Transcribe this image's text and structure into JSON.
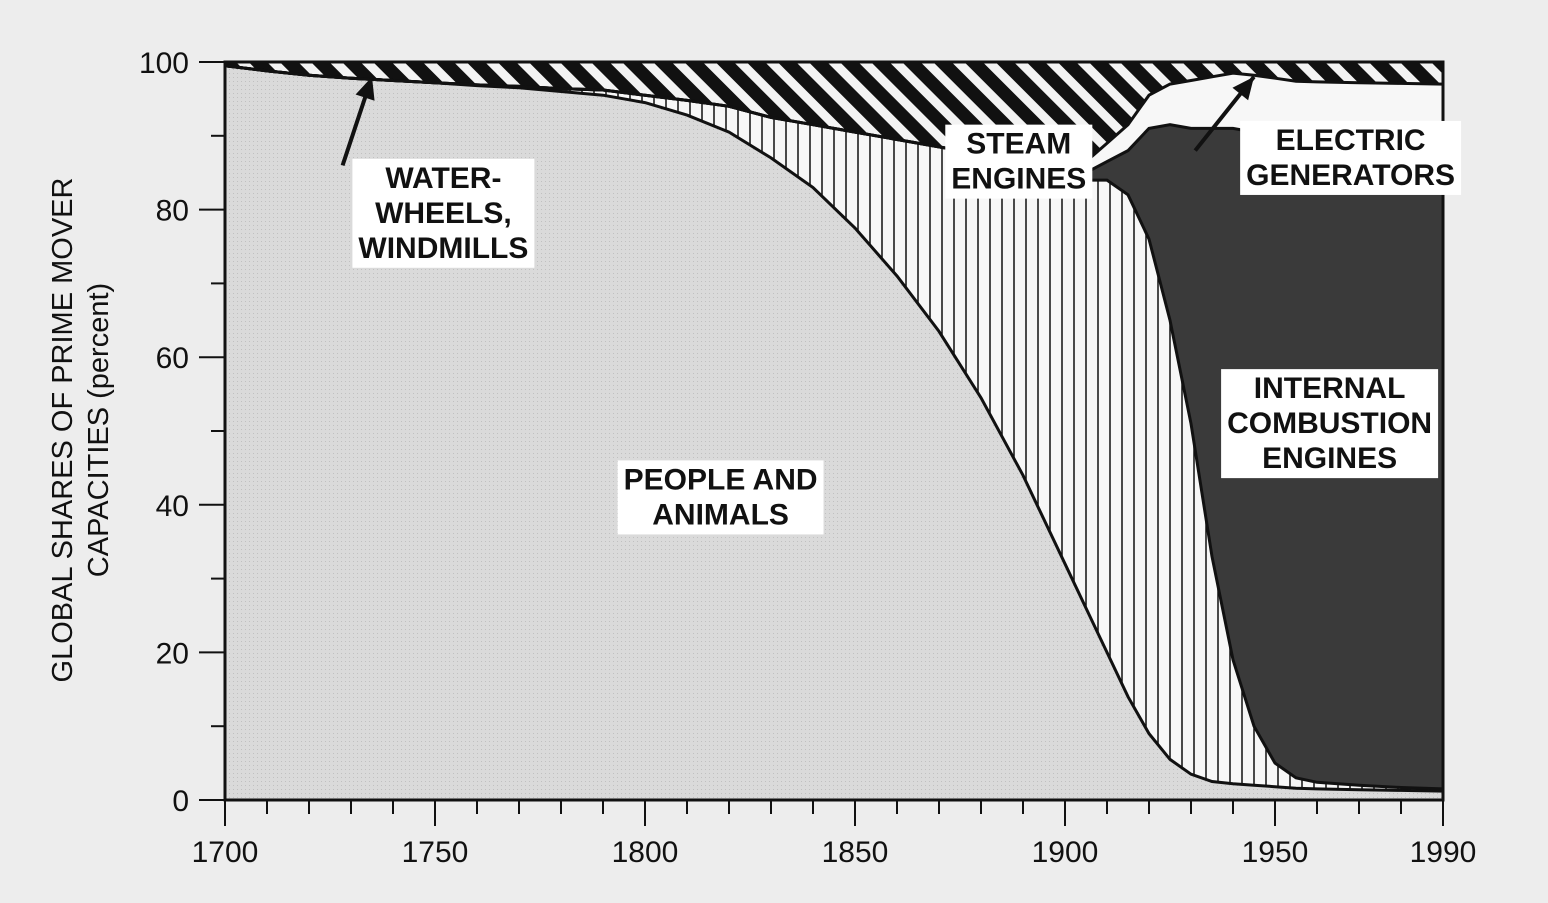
{
  "chart_data": {
    "type": "area",
    "stacked": true,
    "ylabel_line1": "GLOBAL SHARES OF PRIME MOVER",
    "ylabel_line2": "CAPACITIES  (percent)",
    "xlim": [
      1700,
      1990
    ],
    "ylim": [
      0,
      100
    ],
    "x_ticks": [
      1700,
      1750,
      1800,
      1850,
      1900,
      1950,
      1990
    ],
    "y_ticks": [
      0,
      20,
      40,
      60,
      80,
      100
    ],
    "x_minor_step": 10,
    "y_minor_step": 10,
    "x": [
      1700,
      1710,
      1720,
      1730,
      1740,
      1750,
      1760,
      1770,
      1780,
      1790,
      1800,
      1810,
      1820,
      1830,
      1840,
      1850,
      1860,
      1870,
      1880,
      1890,
      1900,
      1905,
      1910,
      1915,
      1920,
      1925,
      1930,
      1935,
      1940,
      1945,
      1950,
      1955,
      1960,
      1970,
      1980,
      1990
    ],
    "series": [
      {
        "name": "PEOPLE AND ANIMALS",
        "fill": "#d7d7d7",
        "values": [
          99.5,
          98.8,
          98.2,
          97.8,
          97.5,
          97.2,
          96.8,
          96.5,
          96.0,
          95.5,
          94.5,
          92.8,
          90.5,
          87.0,
          83.0,
          77.5,
          71.0,
          63.5,
          54.5,
          44.0,
          32.0,
          26.0,
          20.0,
          14.0,
          9.0,
          5.5,
          3.5,
          2.5,
          2.2,
          2.0,
          1.8,
          1.6,
          1.5,
          1.4,
          1.3,
          1.2
        ]
      },
      {
        "name": "STEAM ENGINES",
        "fill": "#f7f7f7",
        "hatch": "vertical",
        "values": [
          0,
          0,
          0,
          0,
          0,
          0,
          0.1,
          0.2,
          0.4,
          0.7,
          1.0,
          2.0,
          3.5,
          5.5,
          8.5,
          13.0,
          18.5,
          25.0,
          33.0,
          42.0,
          52.0,
          58.0,
          64.0,
          68.0,
          67.0,
          59.5,
          47.5,
          30.5,
          16.8,
          8.0,
          3.2,
          1.4,
          0.9,
          0.6,
          0.4,
          0.3
        ]
      },
      {
        "name": "INTERNAL COMBUSTION ENGINES",
        "fill": "#3a3a3a",
        "values": [
          0,
          0,
          0,
          0,
          0,
          0,
          0,
          0,
          0,
          0,
          0,
          0,
          0,
          0,
          0,
          0,
          0,
          0,
          0,
          0,
          0.5,
          1.0,
          2.5,
          6.0,
          15.0,
          26.5,
          40.0,
          58.0,
          72.0,
          80.5,
          85.0,
          86.5,
          87.0,
          87.2,
          87.3,
          87.3
        ]
      },
      {
        "name": "ELECTRIC GENERATORS",
        "fill": "#f7f7f7",
        "values": [
          0,
          0,
          0,
          0,
          0,
          0,
          0,
          0,
          0,
          0,
          0,
          0,
          0,
          0,
          0,
          0,
          0,
          0,
          0,
          0,
          1.0,
          1.5,
          2.5,
          3.5,
          4.5,
          5.5,
          6.5,
          7.0,
          7.5,
          7.7,
          7.8,
          7.9,
          7.9,
          8.0,
          8.1,
          8.2
        ]
      },
      {
        "name": "WATER-WHEELS, WINDMILLS",
        "fill": "#111111",
        "hatch": "diagonal",
        "values": [
          0.5,
          1.2,
          1.8,
          2.2,
          2.5,
          2.8,
          3.1,
          3.3,
          3.6,
          3.8,
          4.5,
          5.2,
          6.0,
          7.5,
          8.5,
          9.5,
          10.5,
          11.5,
          12.5,
          14.0,
          14.5,
          13.5,
          11.0,
          8.5,
          4.5,
          3.0,
          2.5,
          2.0,
          1.5,
          1.8,
          2.2,
          2.6,
          2.7,
          2.8,
          2.9,
          3.0
        ]
      }
    ],
    "labels": [
      {
        "lines": [
          "WATER-",
          "WHEELS,",
          "WINDMILLS"
        ],
        "x": 1752,
        "y": 79.5
      },
      {
        "lines": [
          "STEAM",
          "ENGINES"
        ],
        "x": 1889,
        "y": 86.5
      },
      {
        "lines": [
          "ELECTRIC",
          "GENERATORS"
        ],
        "x": 1968,
        "y": 87
      },
      {
        "lines": [
          "INTERNAL",
          "COMBUSTION",
          "ENGINES"
        ],
        "x": 1963,
        "y": 51
      },
      {
        "lines": [
          "PEOPLE  AND",
          "ANIMALS"
        ],
        "x": 1818,
        "y": 41
      }
    ],
    "arrows": [
      {
        "from": [
          1728,
          86
        ],
        "to": [
          1735,
          98
        ]
      },
      {
        "from": [
          1931,
          88
        ],
        "to": [
          1945,
          98
        ]
      }
    ]
  }
}
